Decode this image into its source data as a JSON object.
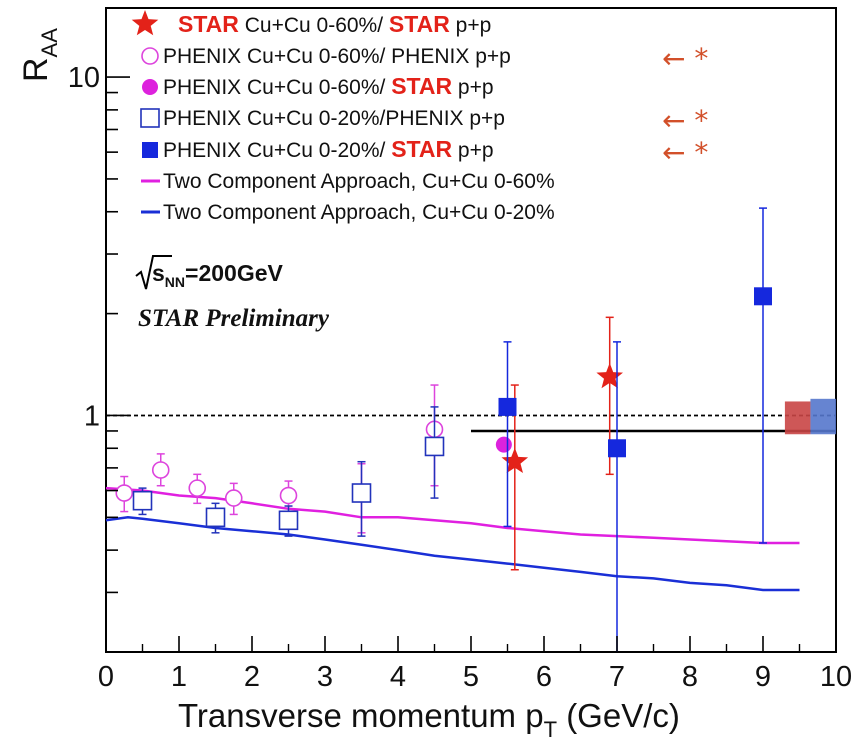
{
  "chart_data": {
    "type": "scatter",
    "ylabel_main": "R",
    "ylabel_sub": "AA",
    "xlabel_main": "Transverse momentum p",
    "xlabel_sub": "T",
    "xlabel_unit": "(GeV/c)",
    "xlim": [
      0,
      10
    ],
    "ylim": [
      0.2,
      16
    ],
    "yscale": "log",
    "x_ticks": [
      "0",
      "1",
      "2",
      "3",
      "4",
      "5",
      "6",
      "7",
      "8",
      "9",
      "10"
    ],
    "y_tick_labels": [
      {
        "value": 1,
        "label": "1"
      },
      {
        "value": 10,
        "label": "10"
      }
    ],
    "legend": [
      {
        "marker": "star-red",
        "parts": [
          {
            "text": "STAR",
            "red": true
          },
          {
            "text": " Cu+Cu 0-60%/ ",
            "red": false
          },
          {
            "text": "STAR",
            "red": true
          },
          {
            "text": " p+p",
            "red": false
          }
        ],
        "arrow": false
      },
      {
        "marker": "circle-open-magenta",
        "parts": [
          {
            "text": "PHENIX Cu+Cu 0-60%/ PHENIX p+p",
            "red": false
          }
        ],
        "arrow": true
      },
      {
        "marker": "circle-filled-magenta",
        "parts": [
          {
            "text": "PHENIX Cu+Cu 0-60%/ ",
            "red": false
          },
          {
            "text": "STAR",
            "red": true
          },
          {
            "text": " p+p",
            "red": false
          }
        ],
        "arrow": false
      },
      {
        "marker": "square-open-blue",
        "parts": [
          {
            "text": "PHENIX Cu+Cu 0-20%/PHENIX p+p",
            "red": false
          }
        ],
        "arrow": true
      },
      {
        "marker": "square-filled-blue",
        "parts": [
          {
            "text": "PHENIX Cu+Cu 0-20%/ ",
            "red": false
          },
          {
            "text": "STAR",
            "red": true
          },
          {
            "text": " p+p",
            "red": false
          }
        ],
        "arrow": true
      },
      {
        "marker": "line-magenta",
        "parts": [
          {
            "text": "Two Component Approach, Cu+Cu 0-60%",
            "red": false
          }
        ],
        "arrow": false
      },
      {
        "marker": "line-blue",
        "parts": [
          {
            "text": "Two Component Approach, Cu+Cu 0-20%",
            "red": false
          }
        ],
        "arrow": false
      }
    ],
    "arrow_marker": "← *",
    "energy_label": {
      "s": "s",
      "sub": "NN",
      "value": "=200GeV"
    },
    "preliminary": "STAR Preliminary",
    "series": [
      {
        "name": "STAR Cu+Cu 0-60%/ STAR p+p",
        "marker": "star",
        "color": "#e32219",
        "points": [
          {
            "x": 5.6,
            "y": 0.73,
            "ylo": 0.35,
            "yhi": 1.23
          },
          {
            "x": 6.9,
            "y": 1.3,
            "ylo": 0.67,
            "yhi": 1.95
          }
        ]
      },
      {
        "name": "PHENIX Cu+Cu 0-60%/ PHENIX p+p",
        "marker": "circle-open",
        "color": "#dd44dd",
        "points": [
          {
            "x": 0.25,
            "y": 0.59,
            "ylo": 0.52,
            "yhi": 0.66
          },
          {
            "x": 0.75,
            "y": 0.69,
            "ylo": 0.62,
            "yhi": 0.77
          },
          {
            "x": 1.25,
            "y": 0.61,
            "ylo": 0.55,
            "yhi": 0.67
          },
          {
            "x": 1.75,
            "y": 0.57,
            "ylo": 0.51,
            "yhi": 0.63
          },
          {
            "x": 2.5,
            "y": 0.58,
            "ylo": 0.52,
            "yhi": 0.64
          },
          {
            "x": 3.5,
            "y": 0.59,
            "ylo": 0.45,
            "yhi": 0.72
          },
          {
            "x": 4.5,
            "y": 0.91,
            "ylo": 0.62,
            "yhi": 1.23
          }
        ]
      },
      {
        "name": "PHENIX Cu+Cu 0-60%/ STAR p+p",
        "marker": "circle-filled",
        "color": "#dd22dd",
        "points": [
          {
            "x": 5.45,
            "y": 0.82,
            "ylo": 0.82,
            "yhi": 0.82
          }
        ]
      },
      {
        "name": "PHENIX Cu+Cu 0-20%/PHENIX p+p",
        "marker": "square-open",
        "color": "#2233bb",
        "points": [
          {
            "x": 0.5,
            "y": 0.56,
            "ylo": 0.51,
            "yhi": 0.61
          },
          {
            "x": 1.5,
            "y": 0.5,
            "ylo": 0.45,
            "yhi": 0.55
          },
          {
            "x": 2.5,
            "y": 0.49,
            "ylo": 0.44,
            "yhi": 0.54
          },
          {
            "x": 3.5,
            "y": 0.59,
            "ylo": 0.44,
            "yhi": 0.73
          },
          {
            "x": 4.5,
            "y": 0.81,
            "ylo": 0.57,
            "yhi": 1.06
          }
        ]
      },
      {
        "name": "PHENIX Cu+Cu 0-20%/ STAR p+p",
        "marker": "square-filled",
        "color": "#1528dd",
        "points": [
          {
            "x": 5.5,
            "y": 1.06,
            "ylo": 0.47,
            "yhi": 1.65
          },
          {
            "x": 7.0,
            "y": 0.8,
            "ylo": 0.2,
            "yhi": 1.65
          },
          {
            "x": 9.0,
            "y": 2.25,
            "ylo": 0.42,
            "yhi": 4.1
          }
        ]
      }
    ],
    "curves": [
      {
        "name": "Two Component Approach, Cu+Cu 0-60%",
        "color": "#e020e0",
        "points": [
          [
            0,
            0.61
          ],
          [
            0.5,
            0.6
          ],
          [
            1,
            0.58
          ],
          [
            1.5,
            0.57
          ],
          [
            2,
            0.55
          ],
          [
            2.5,
            0.53
          ],
          [
            3,
            0.52
          ],
          [
            3.5,
            0.5
          ],
          [
            4,
            0.5
          ],
          [
            4.5,
            0.49
          ],
          [
            5,
            0.48
          ],
          [
            5.5,
            0.465
          ],
          [
            6,
            0.455
          ],
          [
            6.5,
            0.445
          ],
          [
            7,
            0.44
          ],
          [
            7.5,
            0.435
          ],
          [
            8,
            0.43
          ],
          [
            8.5,
            0.425
          ],
          [
            9,
            0.42
          ],
          [
            9.5,
            0.42
          ]
        ]
      },
      {
        "name": "Two Component Approach, Cu+Cu 0-20%",
        "color": "#1a2fd6",
        "points": [
          [
            0,
            0.49
          ],
          [
            0.3,
            0.5
          ],
          [
            0.5,
            0.495
          ],
          [
            1,
            0.48
          ],
          [
            1.5,
            0.465
          ],
          [
            2,
            0.455
          ],
          [
            2.5,
            0.445
          ],
          [
            3,
            0.43
          ],
          [
            3.5,
            0.415
          ],
          [
            4,
            0.4
          ],
          [
            4.5,
            0.385
          ],
          [
            5,
            0.375
          ],
          [
            5.5,
            0.365
          ],
          [
            6,
            0.355
          ],
          [
            6.5,
            0.345
          ],
          [
            7,
            0.335
          ],
          [
            7.5,
            0.33
          ],
          [
            8,
            0.32
          ],
          [
            8.5,
            0.315
          ],
          [
            9,
            0.305
          ],
          [
            9.5,
            0.305
          ]
        ]
      }
    ],
    "reference_lines": [
      {
        "type": "dashed",
        "y": 1.0,
        "x0": 0,
        "x1": 10,
        "color": "#000000"
      },
      {
        "type": "solid",
        "y": 0.9,
        "x0": 5.0,
        "x1": 10,
        "color": "#000000"
      }
    ],
    "norm_boxes": [
      {
        "x0": 9.3,
        "x1": 9.65,
        "y0": 0.88,
        "y1": 1.1,
        "color": "#c94545"
      },
      {
        "x0": 9.65,
        "x1": 10.0,
        "y0": 0.88,
        "y1": 1.12,
        "color": "#5577cc"
      }
    ]
  }
}
